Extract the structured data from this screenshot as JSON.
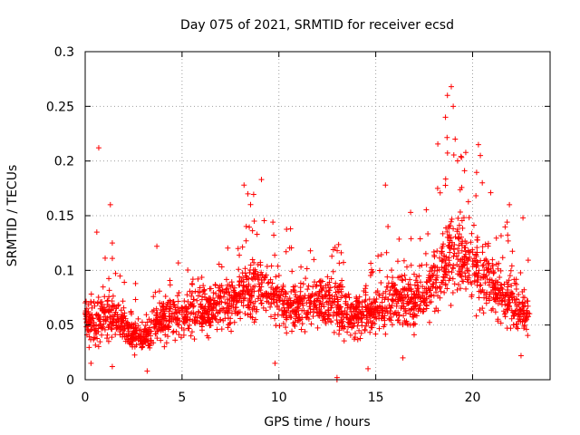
{
  "chart_data": {
    "type": "scatter",
    "title": "Day 075 of 2021, SRMTID for receiver ecsd",
    "xlabel": "GPS time / hours",
    "ylabel": "SRMTID / TECUs",
    "xlim": [
      0,
      24
    ],
    "ylim": [
      0,
      0.3
    ],
    "x_ticks": [
      0,
      5,
      10,
      15,
      20
    ],
    "x_tick_labels": [
      "0",
      "5",
      "10",
      "15",
      "20"
    ],
    "y_ticks": [
      0,
      0.05,
      0.1,
      0.15,
      0.2,
      0.25,
      0.3
    ],
    "y_tick_labels": [
      "0",
      "0.05",
      "0.1",
      "0.15",
      "0.2",
      "0.25",
      "0.3"
    ],
    "grid": true,
    "marker": "+",
    "point_color": "#ff0000",
    "trend": [
      [
        0.0,
        0.055
      ],
      [
        0.5,
        0.05
      ],
      [
        1.0,
        0.058
      ],
      [
        1.5,
        0.06
      ],
      [
        2.0,
        0.05
      ],
      [
        2.5,
        0.042
      ],
      [
        3.0,
        0.038
      ],
      [
        3.5,
        0.045
      ],
      [
        4.0,
        0.055
      ],
      [
        4.5,
        0.06
      ],
      [
        5.0,
        0.058
      ],
      [
        5.5,
        0.06
      ],
      [
        6.0,
        0.062
      ],
      [
        6.5,
        0.065
      ],
      [
        7.0,
        0.068
      ],
      [
        7.5,
        0.07
      ],
      [
        8.0,
        0.08
      ],
      [
        8.5,
        0.085
      ],
      [
        9.0,
        0.085
      ],
      [
        9.5,
        0.078
      ],
      [
        10.0,
        0.072
      ],
      [
        10.5,
        0.068
      ],
      [
        11.0,
        0.065
      ],
      [
        11.5,
        0.068
      ],
      [
        12.0,
        0.07
      ],
      [
        12.5,
        0.07
      ],
      [
        13.0,
        0.065
      ],
      [
        13.5,
        0.06
      ],
      [
        14.0,
        0.058
      ],
      [
        14.5,
        0.06
      ],
      [
        15.0,
        0.063
      ],
      [
        15.5,
        0.07
      ],
      [
        16.0,
        0.075
      ],
      [
        16.5,
        0.072
      ],
      [
        17.0,
        0.068
      ],
      [
        17.5,
        0.078
      ],
      [
        18.0,
        0.09
      ],
      [
        18.5,
        0.105
      ],
      [
        19.0,
        0.115
      ],
      [
        19.5,
        0.11
      ],
      [
        20.0,
        0.105
      ],
      [
        20.5,
        0.1
      ],
      [
        21.0,
        0.085
      ],
      [
        21.5,
        0.075
      ],
      [
        22.0,
        0.07
      ],
      [
        22.5,
        0.062
      ],
      [
        22.9,
        0.058
      ]
    ],
    "highlight_points": [
      [
        0.7,
        0.212
      ],
      [
        0.6,
        0.135
      ],
      [
        1.3,
        0.16
      ],
      [
        1.4,
        0.125
      ],
      [
        3.7,
        0.122
      ],
      [
        8.2,
        0.178
      ],
      [
        8.4,
        0.17
      ],
      [
        9.1,
        0.183
      ],
      [
        10.6,
        0.138
      ],
      [
        15.5,
        0.178
      ],
      [
        16.8,
        0.153
      ],
      [
        18.7,
        0.26
      ],
      [
        18.9,
        0.268
      ],
      [
        19.0,
        0.25
      ],
      [
        18.6,
        0.24
      ],
      [
        19.1,
        0.22
      ],
      [
        20.3,
        0.215
      ],
      [
        20.4,
        0.205
      ],
      [
        20.5,
        0.18
      ],
      [
        21.9,
        0.16
      ],
      [
        22.6,
        0.148
      ],
      [
        2.6,
        0.088
      ],
      [
        12.9,
        0.121
      ],
      [
        1.4,
        0.012
      ],
      [
        3.2,
        0.008
      ],
      [
        9.8,
        0.015
      ],
      [
        13.0,
        0.0
      ],
      [
        13.0,
        0.002
      ],
      [
        14.6,
        0.01
      ],
      [
        16.4,
        0.02
      ],
      [
        22.5,
        0.022
      ],
      [
        0.3,
        0.015
      ]
    ],
    "n_points": 2300,
    "x_range_data": [
      0,
      22.95
    ]
  }
}
